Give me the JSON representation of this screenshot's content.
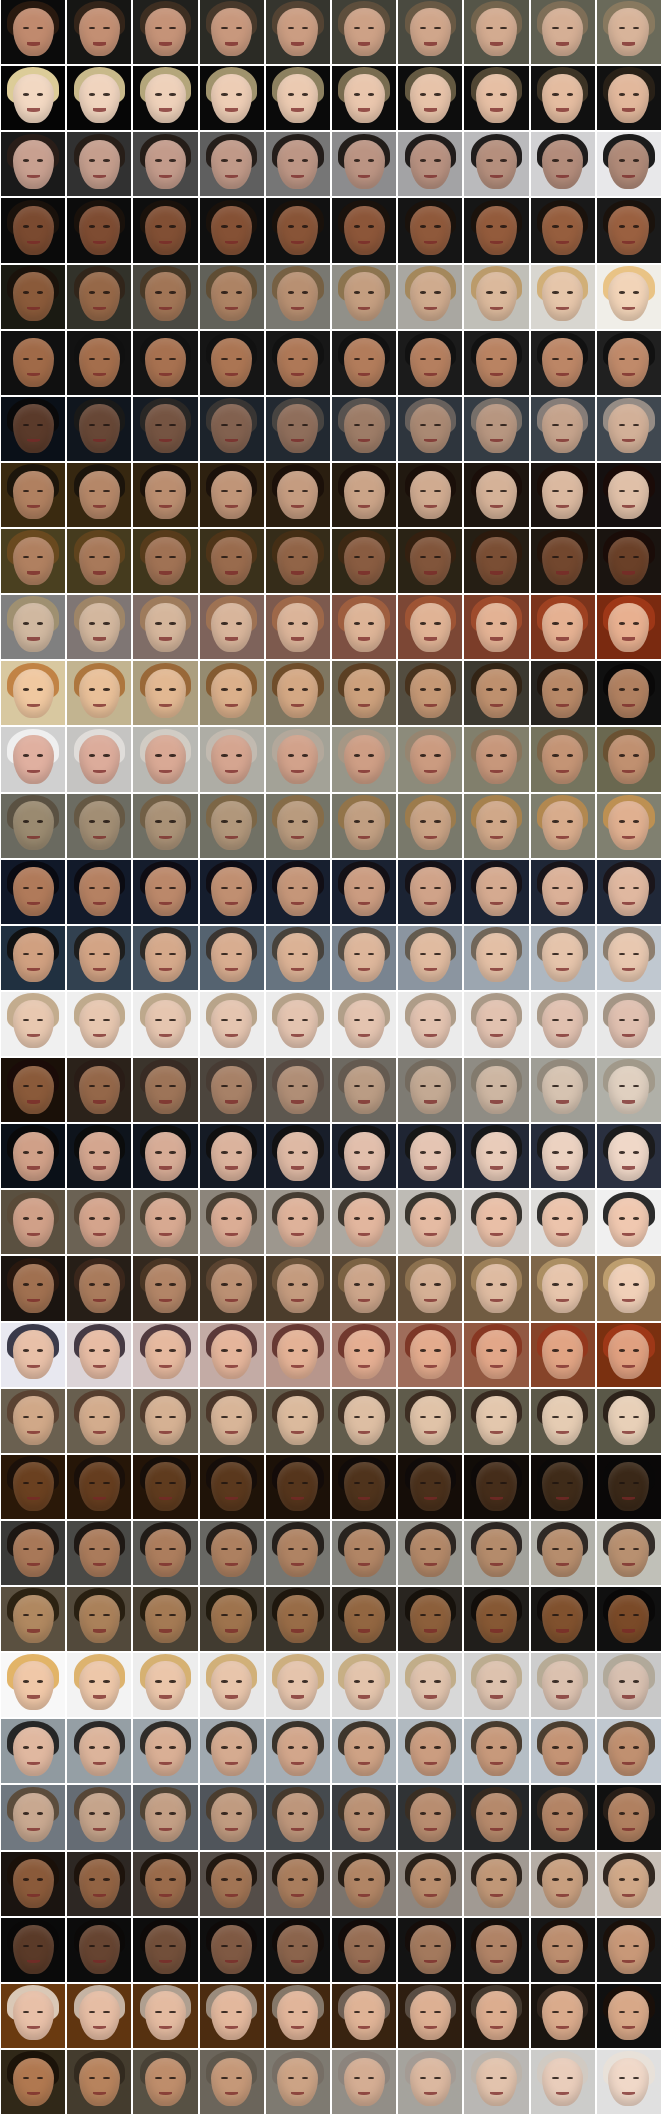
{
  "grid": {
    "rows": 32,
    "cols": 10,
    "row_palettes": [
      {
        "bg": [
          "#0b0b0b",
          "#6a6a5a"
        ],
        "skin": [
          "#c08a6e",
          "#d8b49a"
        ],
        "hair": [
          "#2a1a10",
          "#8a7a60"
        ]
      },
      {
        "bg": [
          "#050505",
          "#111111"
        ],
        "skin": [
          "#f2d8c2",
          "#e2b89c"
        ],
        "hair": [
          "#e8d7a0",
          "#2a2218"
        ]
      },
      {
        "bg": [
          "#1a1a1a",
          "#e8e8ea"
        ],
        "skin": [
          "#c8a090",
          "#b08a78"
        ],
        "hair": [
          "#2a1e18",
          "#111111"
        ]
      },
      {
        "bg": [
          "#0a0a0a",
          "#1a1a1a"
        ],
        "skin": [
          "#7a4a30",
          "#9a6040"
        ],
        "hair": [
          "#1a120c",
          "#1a120c"
        ]
      },
      {
        "bg": [
          "#1a1a12",
          "#f0eee8"
        ],
        "skin": [
          "#8a5a3a",
          "#f2d4b8"
        ],
        "hair": [
          "#1a120c",
          "#e8c080"
        ]
      },
      {
        "bg": [
          "#101010",
          "#202020"
        ],
        "skin": [
          "#a06a48",
          "#c08a6a"
        ],
        "hair": [
          "#111111",
          "#111111"
        ]
      },
      {
        "bg": [
          "#0a1018",
          "#404850"
        ],
        "skin": [
          "#5a3a2a",
          "#d2b098"
        ],
        "hair": [
          "#0a0a0a",
          "#9a9088"
        ]
      },
      {
        "bg": [
          "#3a2a10",
          "#151010"
        ],
        "skin": [
          "#b08060",
          "#e0c0a8"
        ],
        "hair": [
          "#1a140c",
          "#1a0c08"
        ]
      },
      {
        "bg": [
          "#4a4020",
          "#1a1410"
        ],
        "skin": [
          "#b08060",
          "#6a4028"
        ],
        "hair": [
          "#6a4a20",
          "#1a0c08"
        ]
      },
      {
        "bg": [
          "#808080",
          "#7a2a10"
        ],
        "skin": [
          "#d0b8a0",
          "#e8b090"
        ],
        "hair": [
          "#a09070",
          "#a03818"
        ]
      },
      {
        "bg": [
          "#d8c8a0",
          "#101010"
        ],
        "skin": [
          "#f0c8a0",
          "#b08060"
        ],
        "hair": [
          "#c08040",
          "#0a0808"
        ]
      },
      {
        "bg": [
          "#d0d0d0",
          "#6a6850"
        ],
        "skin": [
          "#e0b0a0",
          "#c09070"
        ],
        "hair": [
          "#f0f0f0",
          "#6a5030"
        ]
      },
      {
        "bg": [
          "#6a6a60",
          "#808070"
        ],
        "skin": [
          "#9a8a70",
          "#e0b090"
        ],
        "hair": [
          "#5a5040",
          "#c09050"
        ]
      },
      {
        "bg": [
          "#101828",
          "#202838"
        ],
        "skin": [
          "#b07a5a",
          "#e0b8a0"
        ],
        "hair": [
          "#0a0a10",
          "#1a1418"
        ]
      },
      {
        "bg": [
          "#203040",
          "#c0c8d0"
        ],
        "skin": [
          "#d0a080",
          "#e8c8b0"
        ],
        "hair": [
          "#101010",
          "#8a7a68"
        ]
      },
      {
        "bg": [
          "#f0f0f0",
          "#e8e8e8"
        ],
        "skin": [
          "#e8c8b0",
          "#e0c0b0"
        ],
        "hair": [
          "#c0a888",
          "#a09080"
        ]
      },
      {
        "bg": [
          "#1a1008",
          "#b0b0a8"
        ],
        "skin": [
          "#8a5a3a",
          "#e0d0c0"
        ],
        "hair": [
          "#1a0c08",
          "#a09888"
        ]
      },
      {
        "bg": [
          "#0a1018",
          "#2a3040"
        ],
        "skin": [
          "#d0a088",
          "#f0d8c8"
        ],
        "hair": [
          "#0a0a0a",
          "#1a1a1a"
        ]
      },
      {
        "bg": [
          "#5a5040",
          "#f0f0f0"
        ],
        "skin": [
          "#d0a088",
          "#f0c8b0"
        ],
        "hair": [
          "#5a4a38",
          "#202020"
        ]
      },
      {
        "bg": [
          "#1a1410",
          "#8a7050"
        ],
        "skin": [
          "#a07050",
          "#f0d0b8"
        ],
        "hair": [
          "#2a1810",
          "#c0a070"
        ]
      },
      {
        "bg": [
          "#e8e8f0",
          "#7a3010"
        ],
        "skin": [
          "#e8c0a8",
          "#e0a080"
        ],
        "hair": [
          "#303040",
          "#a03818"
        ]
      },
      {
        "bg": [
          "#6a6050",
          "#5a5848"
        ],
        "skin": [
          "#d0a888",
          "#e8d0b8"
        ],
        "hair": [
          "#5a4030",
          "#2a2018"
        ]
      },
      {
        "bg": [
          "#2a1808",
          "#0a0808"
        ],
        "skin": [
          "#6a4020",
          "#3a2818"
        ],
        "hair": [
          "#1a100a",
          "#0a0808"
        ]
      },
      {
        "bg": [
          "#3a3a38",
          "#c0c0b8"
        ],
        "skin": [
          "#a87858",
          "#b89070"
        ],
        "hair": [
          "#1a1410",
          "#2a2420"
        ]
      },
      {
        "bg": [
          "#5a5040",
          "#101010"
        ],
        "skin": [
          "#b08860",
          "#7a4a28"
        ],
        "hair": [
          "#2a2010",
          "#0a0808"
        ]
      },
      {
        "bg": [
          "#f8f8f8",
          "#c8c8c8"
        ],
        "skin": [
          "#f0c8a8",
          "#d8c0b0"
        ],
        "hair": [
          "#e0b060",
          "#b0a898"
        ]
      },
      {
        "bg": [
          "#909aa0",
          "#c0c8d0"
        ],
        "skin": [
          "#e0b8a0",
          "#c09070"
        ],
        "hair": [
          "#202020",
          "#4a3a28"
        ]
      },
      {
        "bg": [
          "#707880",
          "#101010"
        ],
        "skin": [
          "#c8a890",
          "#b08060"
        ],
        "hair": [
          "#5a4a38",
          "#2a2018"
        ]
      },
      {
        "bg": [
          "#1a1410",
          "#c8c0b8"
        ],
        "skin": [
          "#8a5a3a",
          "#d0a888"
        ],
        "hair": [
          "#1a100a",
          "#2a2018"
        ]
      },
      {
        "bg": [
          "#0a0a0a",
          "#181818"
        ],
        "skin": [
          "#5a3a28",
          "#c89878"
        ],
        "hair": [
          "#0a0808",
          "#1a100a"
        ]
      },
      {
        "bg": [
          "#6a3a10",
          "#101010"
        ],
        "skin": [
          "#e8c0a8",
          "#d8a888"
        ],
        "hair": [
          "#e0d0c0",
          "#1a100a"
        ]
      },
      {
        "bg": [
          "#302818",
          "#e0e0e0"
        ],
        "skin": [
          "#b07850",
          "#f0d8c8"
        ],
        "hair": [
          "#1a1208",
          "#e8e0d8"
        ]
      }
    ]
  }
}
